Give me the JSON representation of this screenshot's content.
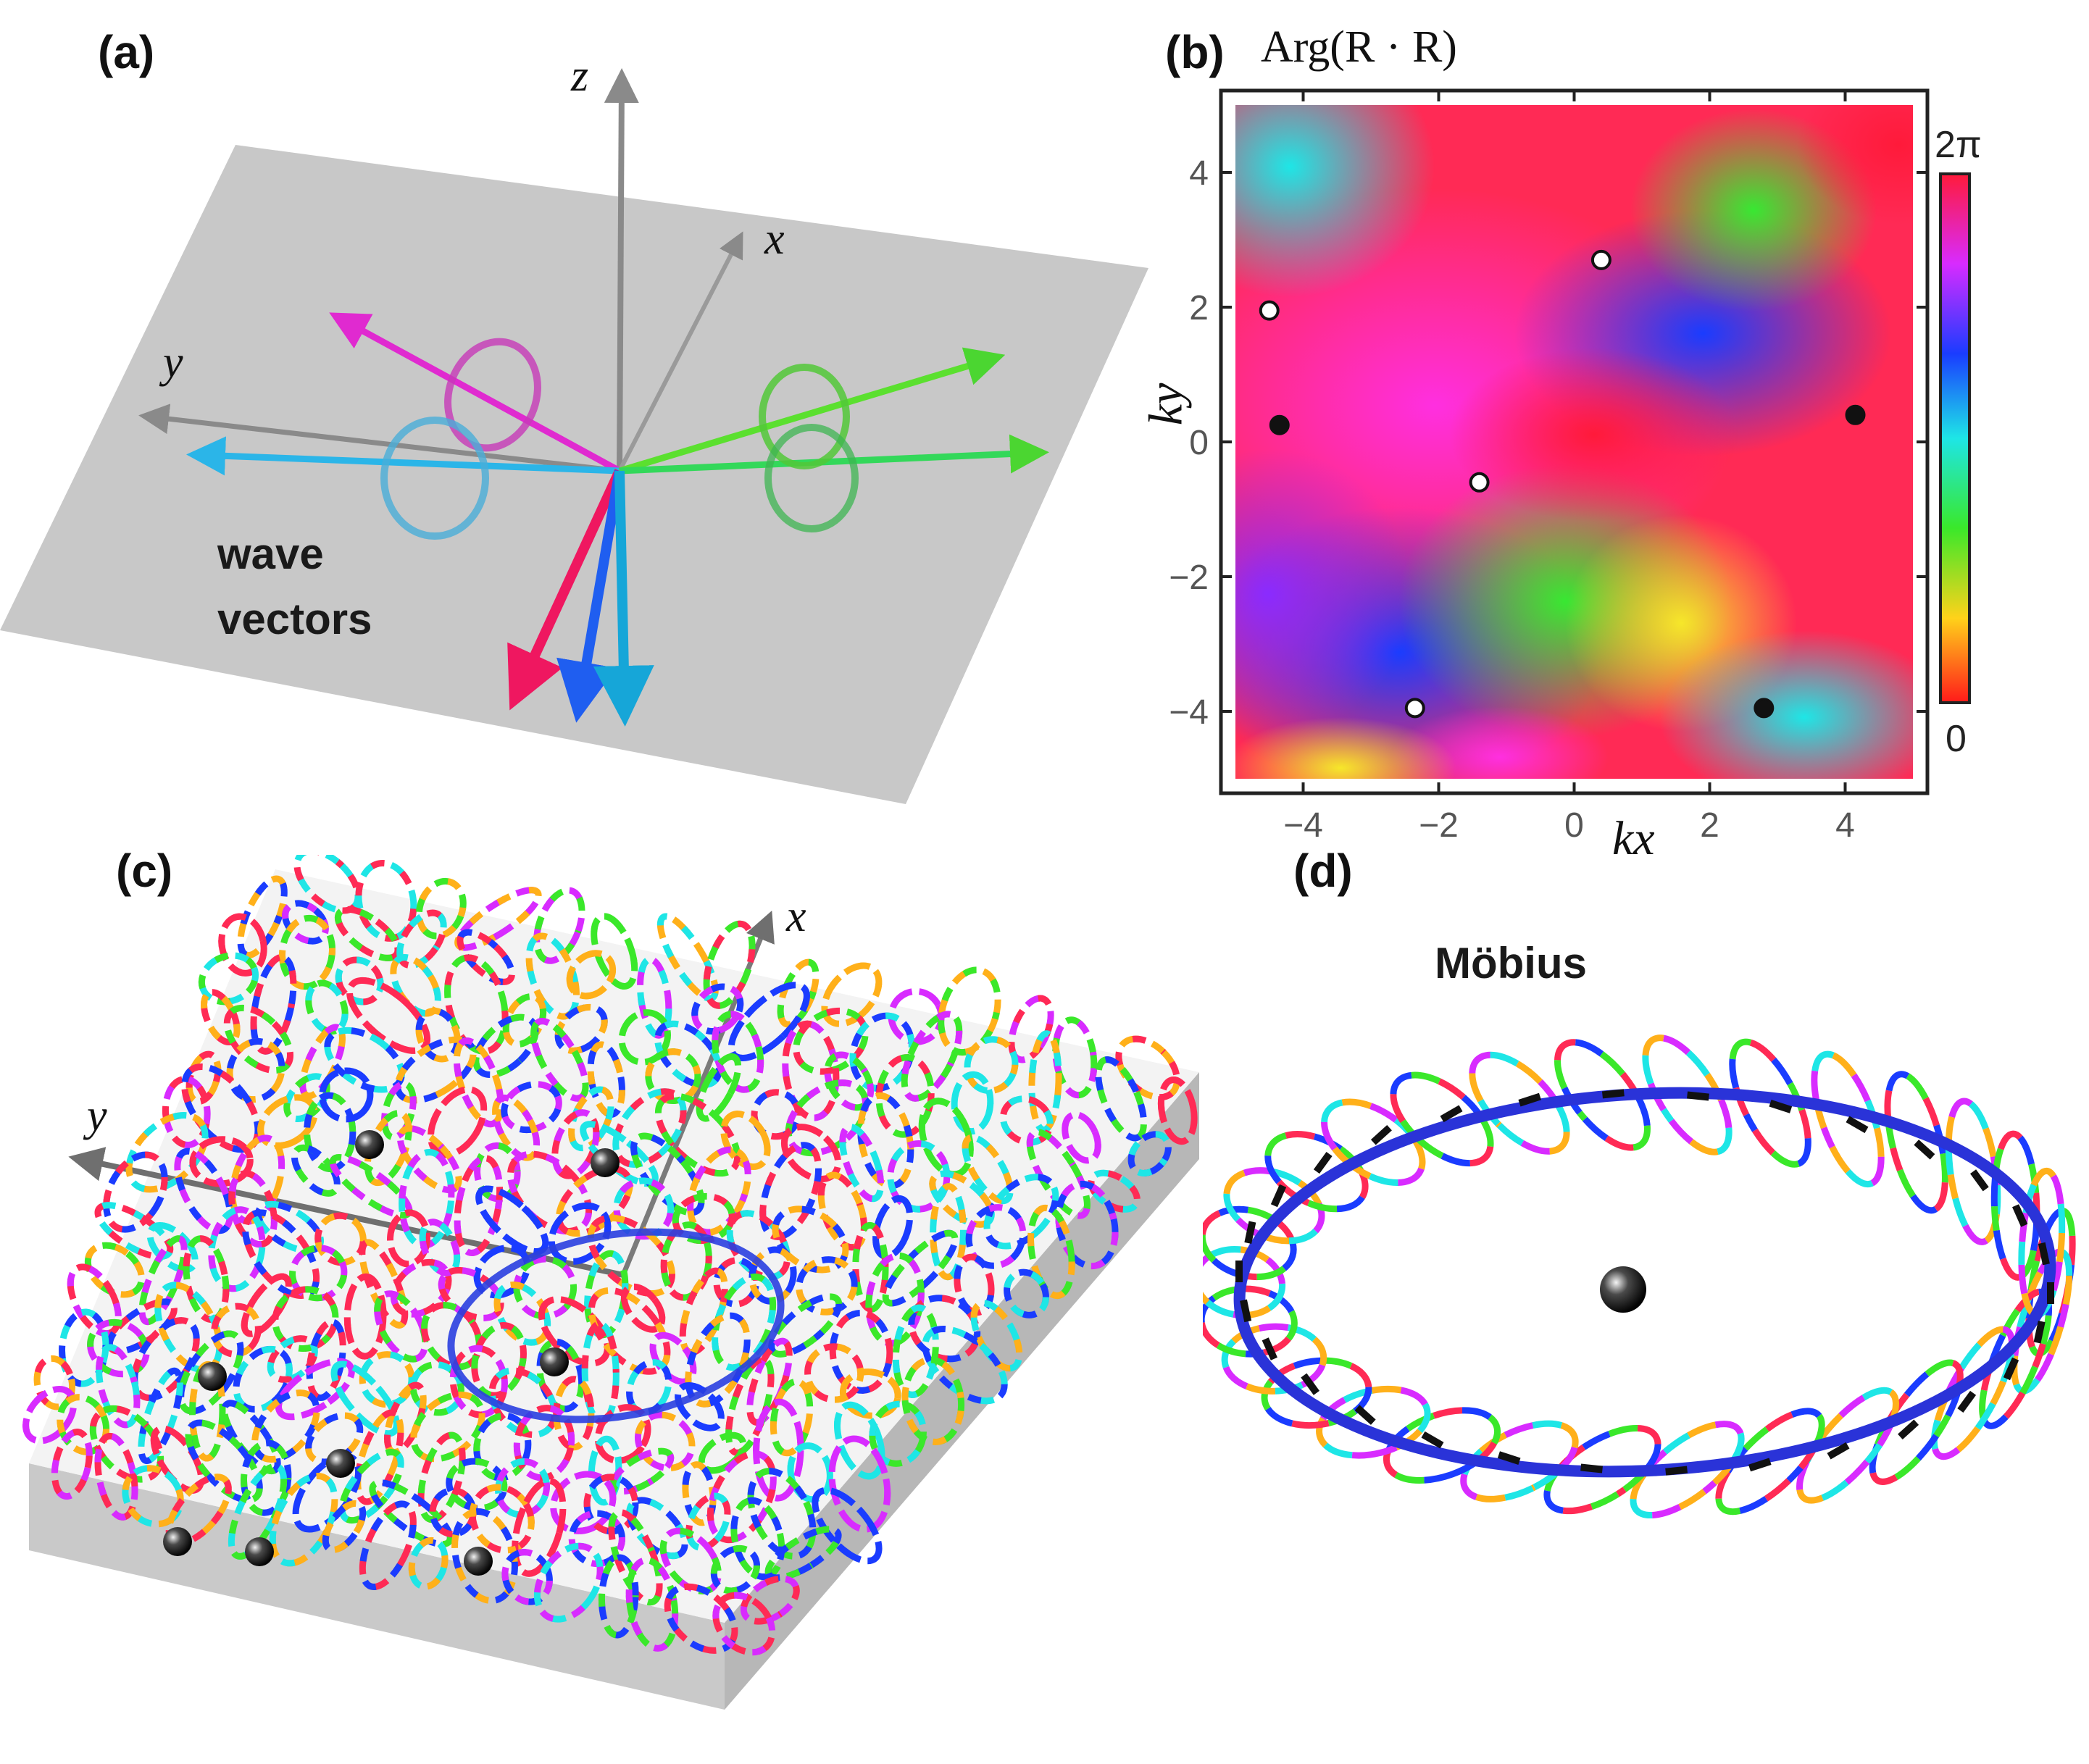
{
  "panel_a": {
    "label": "(a)",
    "axis_x": "x",
    "axis_y": "y",
    "axis_z": "z",
    "caption_line1": "wave",
    "caption_line2": "vectors",
    "colors": {
      "magenta": "#e02ad0",
      "cyan": "#2bb5e8",
      "green": "#4bd631",
      "red": "#ef1760",
      "blue": "#1f5ef0",
      "plane": "#c8c8c8",
      "axis": "#8a8a8a"
    }
  },
  "panel_b": {
    "label": "(b)",
    "title": "Arg(R · R)",
    "colorbar_top": "2π",
    "colorbar_bottom": "0",
    "chart_data": {
      "type": "heatmap",
      "title": "Arg(R · R)",
      "xlabel": "kx",
      "ylabel": "ky",
      "xlim": [
        -5,
        5
      ],
      "ylim": [
        -5,
        5
      ],
      "xticks": [
        -4,
        -2,
        0,
        2,
        4
      ],
      "yticks": [
        -4,
        -2,
        0,
        2,
        4
      ],
      "xtick_labels": [
        "−4",
        "−2",
        "0",
        "2",
        "4"
      ],
      "ytick_labels": [
        "−4",
        "−2",
        "0",
        "2",
        "4"
      ],
      "colorbar_range": [
        0,
        "2π"
      ],
      "phase_singularities": [
        {
          "x": -4.5,
          "y": 1.95,
          "marker": "open"
        },
        {
          "x": 0.4,
          "y": 2.7,
          "marker": "open"
        },
        {
          "x": -1.4,
          "y": -0.6,
          "marker": "open"
        },
        {
          "x": -2.35,
          "y": -3.95,
          "marker": "open"
        },
        {
          "x": -4.35,
          "y": 0.25,
          "marker": "filled"
        },
        {
          "x": 4.15,
          "y": 0.4,
          "marker": "filled"
        },
        {
          "x": 2.8,
          "y": -3.95,
          "marker": "filled"
        }
      ]
    }
  },
  "panel_c": {
    "label": "(c)",
    "axis_x": "x",
    "axis_y": "y"
  },
  "panel_d": {
    "label": "(d)",
    "title": "Möbius"
  }
}
